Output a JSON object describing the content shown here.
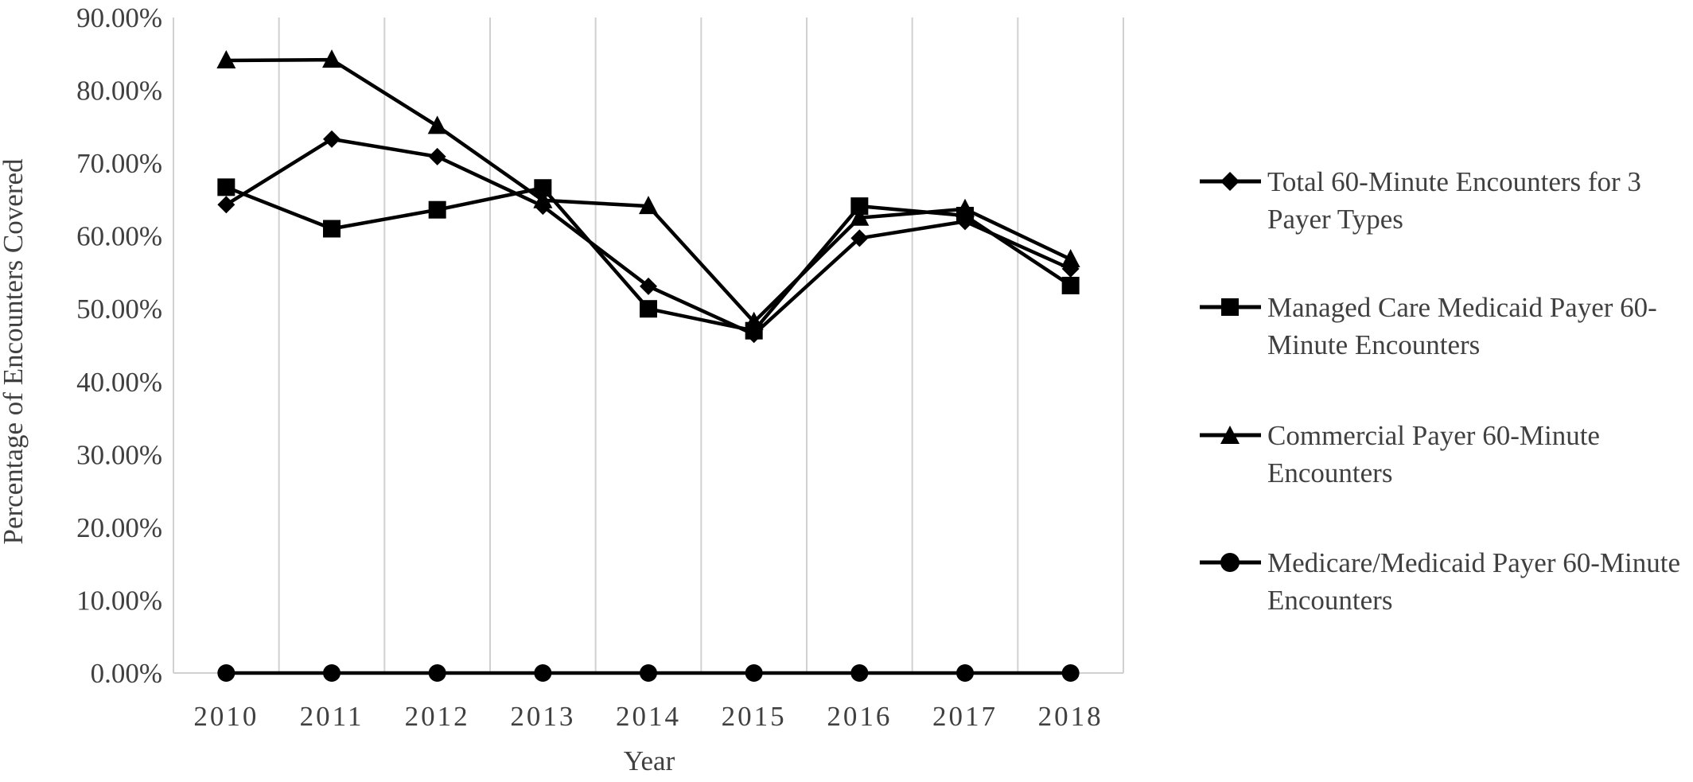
{
  "chart_data": {
    "type": "line",
    "title": "",
    "xlabel": "Year",
    "ylabel": "Percentage of Encounters Covered",
    "categories": [
      "2010",
      "2011",
      "2012",
      "2013",
      "2014",
      "2015",
      "2016",
      "2017",
      "2018"
    ],
    "ylim": [
      0,
      0.9
    ],
    "y_ticks": [
      "0.00%",
      "10.00%",
      "20.00%",
      "30.00%",
      "40.00%",
      "50.00%",
      "60.00%",
      "70.00%",
      "80.00%",
      "90.00%"
    ],
    "grid": "vertical",
    "legend_position": "right",
    "series": [
      {
        "name": "Total 60-Minute Encounters for 3 Payer Types",
        "marker": "diamond",
        "values": [
          0.643,
          0.733,
          0.709,
          0.641,
          0.531,
          0.465,
          0.597,
          0.62,
          0.555
        ]
      },
      {
        "name": "Managed Care Medicaid Payer 60-Minute Encounters",
        "marker": "square",
        "values": [
          0.667,
          0.61,
          0.636,
          0.666,
          0.5,
          0.47,
          0.641,
          0.628,
          0.532
        ]
      },
      {
        "name": "Commercial Payer 60-Minute Encounters",
        "marker": "triangle",
        "values": [
          0.841,
          0.842,
          0.751,
          0.649,
          0.641,
          0.482,
          0.625,
          0.637,
          0.568
        ]
      },
      {
        "name": "Medicare/Medicaid Payer 60-Minute Encounters",
        "marker": "circle",
        "values": [
          0,
          0,
          0,
          0,
          0,
          0,
          0,
          0,
          0
        ]
      }
    ],
    "colors": {
      "line": "#000000",
      "grid": "#d0d0d0",
      "text": "#404040"
    }
  }
}
